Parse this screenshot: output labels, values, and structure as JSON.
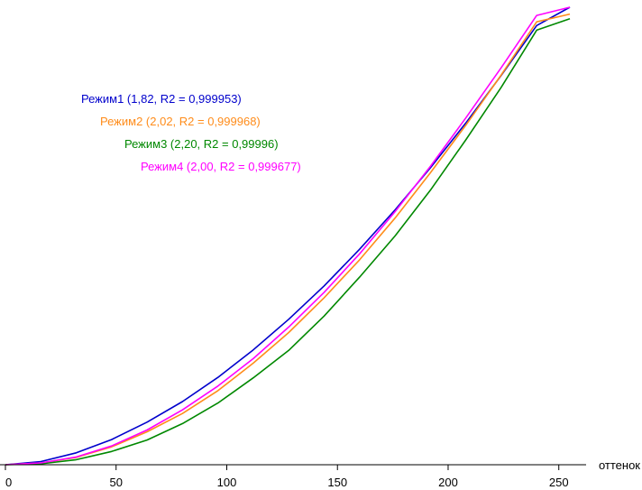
{
  "chart_data": {
    "type": "line",
    "title": "",
    "xlabel": "оттенок",
    "ylabel": "",
    "xlim": [
      0,
      255
    ],
    "ylim": [
      0,
      1
    ],
    "x_ticks": [
      0,
      50,
      100,
      150,
      200,
      250
    ],
    "x_tick_labels": [
      "0",
      "50",
      "100",
      "150",
      "200",
      "250"
    ],
    "grid": false,
    "legend_position": "top-left",
    "series": [
      {
        "name": "Режим1 (1,82, R2 = 0,999953)",
        "color": "#0000cc",
        "gamma": 1.82,
        "x": [
          0,
          16,
          32,
          48,
          64,
          80,
          96,
          112,
          128,
          144,
          160,
          176,
          192,
          208,
          224,
          240,
          255
        ],
        "y": [
          0,
          0.007,
          0.026,
          0.055,
          0.093,
          0.138,
          0.191,
          0.251,
          0.318,
          0.391,
          0.471,
          0.557,
          0.649,
          0.747,
          0.851,
          0.96,
          1.0
        ]
      },
      {
        "name": "Режим2 (2,02, R2 = 0,999968)",
        "color": "#ff8c1a",
        "gamma": 2.02,
        "x": [
          0,
          16,
          32,
          48,
          64,
          80,
          96,
          112,
          128,
          144,
          160,
          176,
          192,
          208,
          224,
          240,
          255
        ],
        "y": [
          0,
          0.004,
          0.016,
          0.039,
          0.072,
          0.112,
          0.162,
          0.222,
          0.289,
          0.365,
          0.448,
          0.539,
          0.638,
          0.742,
          0.852,
          0.968,
          0.985
        ]
      },
      {
        "name": "Режим3 (2,20, R2 = 0,99996)",
        "color": "#008800",
        "gamma": 2.2,
        "x": [
          0,
          16,
          32,
          48,
          64,
          80,
          96,
          112,
          128,
          144,
          160,
          176,
          192,
          208,
          224,
          240,
          255
        ],
        "y": [
          0,
          0.002,
          0.011,
          0.029,
          0.054,
          0.09,
          0.135,
          0.19,
          0.25,
          0.325,
          0.41,
          0.5,
          0.6,
          0.71,
          0.825,
          0.95,
          0.975
        ]
      },
      {
        "name": "Режим4 (2,00, R2 = 0,999677)",
        "color": "#ff00ff",
        "gamma": 2.0,
        "x": [
          0,
          16,
          32,
          48,
          64,
          80,
          96,
          112,
          128,
          144,
          160,
          176,
          192,
          208,
          224,
          240,
          255
        ],
        "y": [
          0,
          0.004,
          0.017,
          0.041,
          0.076,
          0.12,
          0.172,
          0.232,
          0.301,
          0.377,
          0.461,
          0.553,
          0.652,
          0.758,
          0.868,
          0.982,
          1.0
        ]
      }
    ]
  }
}
